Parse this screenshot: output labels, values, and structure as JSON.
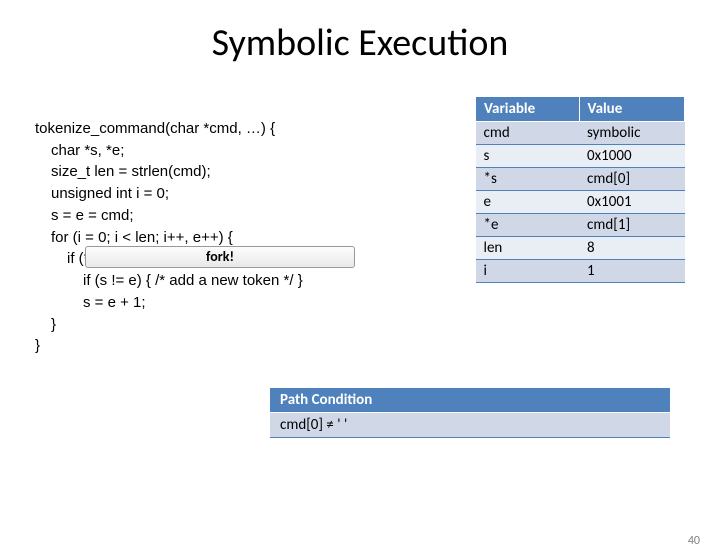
{
  "title": "Symbolic Execution",
  "code": {
    "l1": "tokenize_command(char *cmd, …) {",
    "l2": "char *s, *e;",
    "l3": "size_t len = strlen(cmd);",
    "l4": "unsigned int i = 0;",
    "l5": "s = e = cmd;",
    "l6": "for (i = 0; i < len; i++, e++) {",
    "l7": "if (*e == ' ') {",
    "l8": "if (s != e) { /* add a new token */ }",
    "l9": "s = e + 1;",
    "l10": "}",
    "l11": "}"
  },
  "fork_label": "fork!",
  "var_table": {
    "headers": [
      "Variable",
      "Value"
    ],
    "rows": [
      {
        "var": "cmd",
        "val": "symbolic"
      },
      {
        "var": "s",
        "val": "0x1000"
      },
      {
        "var": "*s",
        "val": "cmd[0]"
      },
      {
        "var": "e",
        "val": "0x1001"
      },
      {
        "var": "*e",
        "val": "cmd[1]"
      },
      {
        "var": "len",
        "val": "8"
      },
      {
        "var": "i",
        "val": "1"
      }
    ],
    "header_bg": "#4f81bd",
    "header_fg": "#ffffff",
    "row_odd_bg": "#d0d8e8",
    "row_even_bg": "#e9edf4"
  },
  "path_condition": {
    "header": "Path Condition",
    "rows": [
      "cmd[0] ≠ ' '"
    ]
  },
  "slide_number": "40"
}
